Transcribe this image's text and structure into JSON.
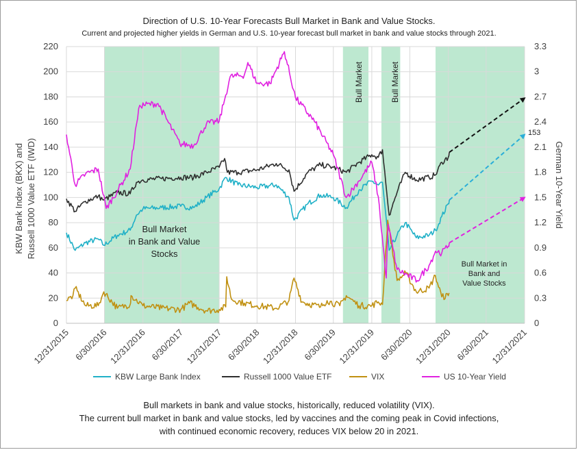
{
  "chart_data": {
    "type": "line",
    "title": "Direction of U.S. 10-Year Forecasts Bull Market in Bank and Value Stocks.",
    "subtitle": "Current and projected higher yields in German and U.S. 10-year forecast bull market in bank and value stocks through 2021.",
    "ylabel_left_line1": "KBW Bank Index (BKX) and",
    "ylabel_left_line2": "Russell 1000 Value ETF (IWD)",
    "ylabel_right": "German 10-Year Yield",
    "ylim_left": [
      0,
      220
    ],
    "ylim_right": [
      0,
      3.3
    ],
    "y_ticks_left": [
      "0",
      "20",
      "40",
      "60",
      "80",
      "100",
      "120",
      "140",
      "160",
      "180",
      "200",
      "220"
    ],
    "y_ticks_right": [
      "0",
      "0.3",
      "0.6",
      "0.9",
      "1.2",
      "1.5",
      "1.8",
      "2.1",
      "2.4",
      "2.7",
      "3",
      "3.3"
    ],
    "x_ticks": [
      "12/31/2015",
      "6/30/2016",
      "12/31/2016",
      "6/30/2017",
      "12/31/2017",
      "6/30/2018",
      "12/31/2018",
      "6/30/2019",
      "12/31/2019",
      "6/30/2020",
      "12/31/2020",
      "6/30/2021",
      "12/31/2021"
    ],
    "x_range": [
      "2015-12-31",
      "2021-12-31"
    ],
    "legend_position": "bottom",
    "bull_market_periods": [
      {
        "start": "2016-06-30",
        "end": "2017-12-31"
      },
      {
        "start": "2019-08-15",
        "end": "2019-12-15"
      },
      {
        "start": "2020-02-15",
        "end": "2020-05-15"
      },
      {
        "start": "2020-10-31",
        "end": "2021-12-31"
      }
    ],
    "annotations": {
      "bull_text_1": [
        "Bull Market",
        "in Bank and Value",
        "Stocks"
      ],
      "bull_text_2": "Bull Market",
      "bull_text_3": "Bull Market",
      "bull_text_4": [
        "Bull Market in",
        "Bank and",
        "Value Stocks"
      ],
      "label_153": "153"
    },
    "series": [
      {
        "name": "KBW Large Bank Index",
        "color": "#1fb0c7",
        "axis": "left",
        "points": [
          [
            "2015-12-31",
            72
          ],
          [
            "2016-02-11",
            58
          ],
          [
            "2016-03-31",
            64
          ],
          [
            "2016-05-31",
            67
          ],
          [
            "2016-06-27",
            62
          ],
          [
            "2016-08-31",
            70
          ],
          [
            "2016-10-31",
            74
          ],
          [
            "2016-11-30",
            86
          ],
          [
            "2016-12-31",
            91
          ],
          [
            "2017-03-31",
            92
          ],
          [
            "2017-06-30",
            93
          ],
          [
            "2017-08-31",
            92
          ],
          [
            "2017-10-31",
            100
          ],
          [
            "2017-12-31",
            107
          ],
          [
            "2018-01-31",
            116
          ],
          [
            "2018-03-31",
            110
          ],
          [
            "2018-06-30",
            108
          ],
          [
            "2018-09-30",
            110
          ],
          [
            "2018-11-30",
            100
          ],
          [
            "2018-12-24",
            82
          ],
          [
            "2019-02-28",
            95
          ],
          [
            "2019-04-30",
            102
          ],
          [
            "2019-06-30",
            100
          ],
          [
            "2019-08-31",
            92
          ],
          [
            "2019-10-31",
            106
          ],
          [
            "2019-12-31",
            113
          ],
          [
            "2020-01-31",
            110
          ],
          [
            "2020-02-20",
            112
          ],
          [
            "2020-03-23",
            58
          ],
          [
            "2020-04-30",
            70
          ],
          [
            "2020-06-08",
            80
          ],
          [
            "2020-07-31",
            68
          ],
          [
            "2020-09-30",
            70
          ],
          [
            "2020-10-31",
            74
          ],
          [
            "2020-11-30",
            85
          ],
          [
            "2020-12-31",
            95
          ],
          [
            "2021-01-05",
            98
          ]
        ]
      },
      {
        "name": "Russell 1000 Value ETF",
        "color": "#2e2e2e",
        "axis": "left",
        "points": [
          [
            "2015-12-31",
            99
          ],
          [
            "2016-02-11",
            89
          ],
          [
            "2016-03-31",
            97
          ],
          [
            "2016-05-31",
            101
          ],
          [
            "2016-06-27",
            98
          ],
          [
            "2016-08-31",
            104
          ],
          [
            "2016-10-31",
            103
          ],
          [
            "2016-11-30",
            112
          ],
          [
            "2016-12-31",
            114
          ],
          [
            "2017-03-31",
            115
          ],
          [
            "2017-06-30",
            116
          ],
          [
            "2017-08-31",
            116
          ],
          [
            "2017-10-31",
            120
          ],
          [
            "2017-12-31",
            124
          ],
          [
            "2018-01-26",
            131
          ],
          [
            "2018-02-08",
            120
          ],
          [
            "2018-03-31",
            120
          ],
          [
            "2018-06-30",
            122
          ],
          [
            "2018-09-30",
            127
          ],
          [
            "2018-11-30",
            122
          ],
          [
            "2018-12-24",
            105
          ],
          [
            "2019-02-28",
            120
          ],
          [
            "2019-04-30",
            126
          ],
          [
            "2019-06-30",
            124
          ],
          [
            "2019-08-31",
            120
          ],
          [
            "2019-10-31",
            128
          ],
          [
            "2019-12-31",
            134
          ],
          [
            "2020-01-31",
            132
          ],
          [
            "2020-02-20",
            138
          ],
          [
            "2020-03-23",
            86
          ],
          [
            "2020-04-30",
            104
          ],
          [
            "2020-06-08",
            120
          ],
          [
            "2020-07-31",
            114
          ],
          [
            "2020-09-30",
            116
          ],
          [
            "2020-10-31",
            118
          ],
          [
            "2020-11-30",
            128
          ],
          [
            "2020-12-31",
            132
          ],
          [
            "2021-01-05",
            136
          ]
        ]
      },
      {
        "name": "VIX",
        "color": "#c09010",
        "axis": "left",
        "points": [
          [
            "2015-12-31",
            18
          ],
          [
            "2016-01-31",
            22
          ],
          [
            "2016-02-11",
            28
          ],
          [
            "2016-03-31",
            14
          ],
          [
            "2016-05-31",
            14
          ],
          [
            "2016-06-27",
            25
          ],
          [
            "2016-08-31",
            12
          ],
          [
            "2016-10-31",
            15
          ],
          [
            "2016-11-04",
            22
          ],
          [
            "2016-12-31",
            14
          ],
          [
            "2017-03-31",
            12
          ],
          [
            "2017-06-30",
            11
          ],
          [
            "2017-08-11",
            16
          ],
          [
            "2017-10-31",
            10
          ],
          [
            "2017-12-31",
            11
          ],
          [
            "2018-01-31",
            13
          ],
          [
            "2018-02-05",
            37
          ],
          [
            "2018-02-28",
            19
          ],
          [
            "2018-04-30",
            16
          ],
          [
            "2018-06-30",
            14
          ],
          [
            "2018-09-30",
            12
          ],
          [
            "2018-11-30",
            18
          ],
          [
            "2018-12-24",
            36
          ],
          [
            "2019-01-31",
            17
          ],
          [
            "2019-04-30",
            13
          ],
          [
            "2019-05-31",
            18
          ],
          [
            "2019-07-31",
            14
          ],
          [
            "2019-08-31",
            22
          ],
          [
            "2019-10-31",
            14
          ],
          [
            "2019-12-31",
            14
          ],
          [
            "2020-01-31",
            17
          ],
          [
            "2020-02-20",
            15
          ],
          [
            "2020-03-16",
            82
          ],
          [
            "2020-04-30",
            34
          ],
          [
            "2020-06-11",
            40
          ],
          [
            "2020-07-31",
            25
          ],
          [
            "2020-09-30",
            28
          ],
          [
            "2020-10-30",
            38
          ],
          [
            "2020-11-30",
            21
          ],
          [
            "2020-12-31",
            22
          ],
          [
            "2021-01-05",
            24
          ]
        ]
      },
      {
        "name": "US 10-Year Yield",
        "color": "#e020e0",
        "axis": "right",
        "points": [
          [
            "2015-12-31",
            2.25
          ],
          [
            "2016-02-11",
            1.65
          ],
          [
            "2016-03-31",
            1.78
          ],
          [
            "2016-05-31",
            1.84
          ],
          [
            "2016-07-08",
            1.37
          ],
          [
            "2016-08-31",
            1.58
          ],
          [
            "2016-10-31",
            1.84
          ],
          [
            "2016-11-30",
            2.37
          ],
          [
            "2016-12-16",
            2.6
          ],
          [
            "2017-03-13",
            2.62
          ],
          [
            "2017-06-26",
            2.14
          ],
          [
            "2017-08-31",
            2.12
          ],
          [
            "2017-10-31",
            2.38
          ],
          [
            "2017-12-31",
            2.41
          ],
          [
            "2018-01-31",
            2.72
          ],
          [
            "2018-02-21",
            2.94
          ],
          [
            "2018-04-30",
            2.96
          ],
          [
            "2018-05-17",
            3.11
          ],
          [
            "2018-06-30",
            2.86
          ],
          [
            "2018-08-31",
            2.86
          ],
          [
            "2018-11-08",
            3.24
          ],
          [
            "2018-12-31",
            2.69
          ],
          [
            "2019-03-31",
            2.41
          ],
          [
            "2019-06-30",
            2.01
          ],
          [
            "2019-08-31",
            1.5
          ],
          [
            "2019-10-31",
            1.7
          ],
          [
            "2019-12-31",
            1.92
          ],
          [
            "2020-01-31",
            1.51
          ],
          [
            "2020-03-09",
            0.54
          ],
          [
            "2020-03-18",
            1.18
          ],
          [
            "2020-04-30",
            0.64
          ],
          [
            "2020-08-04",
            0.51
          ],
          [
            "2020-09-30",
            0.69
          ],
          [
            "2020-10-31",
            0.86
          ],
          [
            "2020-11-30",
            0.84
          ],
          [
            "2020-12-31",
            0.92
          ],
          [
            "2021-01-05",
            0.96
          ]
        ]
      }
    ],
    "projections": [
      {
        "series": "Russell 1000 Value ETF",
        "color": "#111111",
        "axis": "left",
        "from": [
          "2021-01-05",
          136
        ],
        "to": [
          "2021-12-31",
          179
        ]
      },
      {
        "series": "KBW Large Bank Index",
        "color": "#2aaed8",
        "axis": "left",
        "from": [
          "2021-01-05",
          98
        ],
        "to": [
          "2021-12-31",
          150
        ]
      },
      {
        "series": "US 10-Year Yield",
        "color": "#e020e0",
        "axis": "right",
        "from": [
          "2021-01-05",
          0.96
        ],
        "to": [
          "2021-12-31",
          1.5
        ]
      }
    ]
  },
  "footer": {
    "line1": "Bull markets in bank and value stocks, historically, reduced volatility (VIX).",
    "line2": "The current bull market in bank and value stocks, led by vaccines and the coming peak in Covid infections,",
    "line3": "with continued economic recovery, reduces VIX below 20 in 2021."
  }
}
